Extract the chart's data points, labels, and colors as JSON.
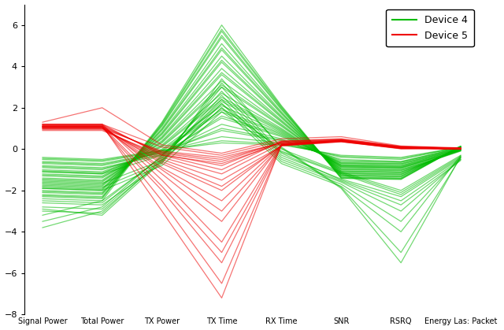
{
  "axes_labels": [
    "Signal Power",
    "Total Power",
    "TX Power",
    "TX Time",
    "RX Time",
    "SNR",
    "RSRQ",
    "Energy Las: Packet"
  ],
  "ylim": [
    -8,
    7
  ],
  "yticks": [
    -8,
    -6,
    -4,
    -2,
    0,
    2,
    4,
    6
  ],
  "device4_color": "#00bb00",
  "device5_color": "#ee0000",
  "alpha": 0.55,
  "linewidth": 0.9,
  "legend_device4": "Device 4",
  "legend_device5": "Device 5",
  "background_color": "#ffffff",
  "device4_data": [
    [
      -0.4,
      -0.5,
      -0.05,
      0.3,
      0.2,
      -0.3,
      -0.4,
      0.1
    ],
    [
      -0.5,
      -0.6,
      -0.1,
      0.6,
      0.3,
      -0.4,
      -0.5,
      0.1
    ],
    [
      -0.6,
      -0.7,
      -0.15,
      0.9,
      0.4,
      -0.5,
      -0.6,
      0.08
    ],
    [
      -0.7,
      -0.8,
      -0.2,
      1.2,
      0.5,
      -0.6,
      -0.65,
      0.06
    ],
    [
      -0.8,
      -0.9,
      -0.25,
      1.5,
      0.6,
      -0.65,
      -0.7,
      0.04
    ],
    [
      -0.9,
      -1.0,
      -0.1,
      1.8,
      0.7,
      -0.7,
      -0.75,
      0.02
    ],
    [
      -1.0,
      -1.1,
      0.0,
      2.1,
      0.8,
      -0.75,
      -0.8,
      0.0
    ],
    [
      -1.1,
      -1.2,
      0.1,
      2.4,
      0.9,
      -0.8,
      -0.85,
      -0.02
    ],
    [
      -1.2,
      -1.3,
      0.2,
      2.7,
      1.0,
      -0.85,
      -0.9,
      -0.04
    ],
    [
      -1.3,
      -1.4,
      0.3,
      3.0,
      1.1,
      -0.9,
      -0.95,
      -0.06
    ],
    [
      -1.4,
      -1.5,
      0.4,
      3.3,
      1.2,
      -0.95,
      -1.0,
      -0.08
    ],
    [
      -1.5,
      -1.6,
      0.5,
      3.6,
      1.3,
      -1.0,
      -1.05,
      -0.1
    ],
    [
      -1.6,
      -1.7,
      0.6,
      3.9,
      1.4,
      -1.05,
      -1.1,
      -0.05
    ],
    [
      -1.7,
      -1.8,
      0.7,
      4.2,
      1.5,
      -1.1,
      -1.15,
      0.0
    ],
    [
      -1.8,
      -1.9,
      0.8,
      4.5,
      1.6,
      -1.15,
      -1.2,
      0.05
    ],
    [
      -1.9,
      -2.0,
      0.9,
      4.8,
      1.7,
      -1.2,
      -1.25,
      0.1
    ],
    [
      -2.0,
      -2.1,
      1.0,
      5.1,
      1.8,
      -1.25,
      -1.3,
      0.1
    ],
    [
      -2.1,
      -2.2,
      1.1,
      5.4,
      1.9,
      -1.3,
      -1.35,
      0.12
    ],
    [
      -2.2,
      -2.3,
      1.2,
      5.7,
      2.0,
      -1.35,
      -1.4,
      0.12
    ],
    [
      -2.3,
      -2.4,
      1.3,
      6.0,
      2.1,
      -1.4,
      -1.45,
      0.15
    ],
    [
      -0.45,
      -0.55,
      -0.08,
      0.4,
      0.25,
      -0.35,
      -0.45,
      0.09
    ],
    [
      -0.65,
      -0.75,
      -0.18,
      1.0,
      0.45,
      -0.55,
      -0.62,
      0.07
    ],
    [
      -0.85,
      -0.95,
      -0.28,
      1.6,
      0.65,
      -0.68,
      -0.72,
      0.03
    ],
    [
      -1.05,
      -1.15,
      -0.05,
      1.9,
      0.75,
      -0.77,
      -0.82,
      0.01
    ],
    [
      -1.25,
      -1.35,
      0.15,
      2.5,
      0.95,
      -0.87,
      -0.92,
      -0.03
    ],
    [
      -1.45,
      -1.55,
      0.35,
      3.1,
      1.15,
      -0.97,
      -1.02,
      -0.07
    ],
    [
      -1.65,
      -1.75,
      0.55,
      3.7,
      1.35,
      -1.07,
      -1.12,
      -0.03
    ],
    [
      -1.85,
      -1.95,
      0.75,
      4.3,
      1.55,
      -1.17,
      -1.22,
      0.03
    ],
    [
      -2.05,
      -2.15,
      0.95,
      4.9,
      1.75,
      -1.27,
      -1.32,
      0.08
    ],
    [
      -2.25,
      -2.35,
      1.15,
      5.5,
      1.95,
      -1.37,
      -1.42,
      0.13
    ],
    [
      -1.55,
      -1.65,
      -0.55,
      2.0,
      0.0,
      -1.1,
      -2.0,
      -0.3
    ],
    [
      -1.75,
      -1.85,
      -0.65,
      2.2,
      -0.1,
      -1.15,
      -2.1,
      -0.35
    ],
    [
      -2.5,
      -2.6,
      -0.35,
      2.8,
      -0.3,
      -1.45,
      -2.3,
      -0.45
    ],
    [
      -2.8,
      -2.9,
      -0.45,
      3.0,
      -0.2,
      -1.5,
      -2.5,
      -0.5
    ],
    [
      -3.0,
      -3.1,
      -0.5,
      2.6,
      -0.4,
      -1.55,
      -2.7,
      -0.55
    ],
    [
      -3.2,
      -2.5,
      -0.4,
      2.4,
      -0.5,
      -1.6,
      -3.0,
      -0.5
    ],
    [
      -3.5,
      -2.8,
      -0.3,
      2.2,
      -0.6,
      -1.7,
      -3.5,
      -0.4
    ],
    [
      -3.8,
      -3.0,
      -0.55,
      2.0,
      -0.7,
      -1.8,
      -4.0,
      -0.3
    ],
    [
      -2.9,
      -3.2,
      -0.6,
      3.2,
      0.1,
      -1.85,
      -5.0,
      -0.4
    ],
    [
      -2.6,
      -2.7,
      -0.7,
      3.4,
      0.05,
      -1.9,
      -5.5,
      -0.35
    ],
    [
      -1.9,
      -2.0,
      -0.8,
      1.8,
      -0.15,
      -1.2,
      -2.2,
      -0.4
    ],
    [
      -1.1,
      -1.2,
      -0.3,
      2.3,
      0.85,
      -0.82,
      -0.88,
      -0.05
    ],
    [
      -2.4,
      -2.5,
      1.25,
      5.8,
      2.05,
      -1.42,
      -1.47,
      0.14
    ]
  ],
  "device5_data": [
    [
      1.0,
      1.0,
      -0.1,
      -0.4,
      0.3,
      0.4,
      0.08,
      0.05
    ],
    [
      1.05,
      1.05,
      -0.15,
      -0.5,
      0.32,
      0.42,
      0.09,
      0.05
    ],
    [
      1.1,
      1.1,
      -0.2,
      -0.6,
      0.34,
      0.44,
      0.1,
      0.04
    ],
    [
      1.15,
      1.15,
      -0.25,
      -0.8,
      0.36,
      0.46,
      0.11,
      0.04
    ],
    [
      1.2,
      1.2,
      -0.3,
      -1.0,
      0.38,
      0.48,
      0.12,
      0.03
    ],
    [
      1.0,
      1.0,
      -0.5,
      -1.5,
      0.15,
      0.35,
      0.03,
      0.02
    ],
    [
      1.05,
      1.05,
      -0.7,
      -2.0,
      0.18,
      0.38,
      0.05,
      0.02
    ],
    [
      1.1,
      1.1,
      -0.9,
      -2.5,
      0.2,
      0.4,
      0.06,
      0.01
    ],
    [
      1.15,
      1.15,
      -1.2,
      -3.5,
      0.22,
      0.42,
      0.07,
      0.01
    ],
    [
      1.2,
      1.2,
      -1.5,
      -4.5,
      0.24,
      0.44,
      0.08,
      0.01
    ],
    [
      1.05,
      1.05,
      -2.0,
      -5.5,
      0.18,
      0.38,
      0.05,
      0.0
    ],
    [
      1.1,
      1.1,
      -2.5,
      -6.5,
      0.2,
      0.4,
      0.06,
      0.0
    ],
    [
      1.15,
      1.15,
      -3.0,
      -7.2,
      0.22,
      0.42,
      0.07,
      0.0
    ],
    [
      0.9,
      0.9,
      -0.3,
      -0.7,
      0.28,
      0.38,
      0.02,
      0.03
    ],
    [
      0.95,
      0.95,
      -0.4,
      -1.2,
      0.26,
      0.36,
      0.01,
      0.02
    ],
    [
      1.0,
      1.0,
      -0.6,
      -1.8,
      0.16,
      0.36,
      0.04,
      0.02
    ],
    [
      1.05,
      1.05,
      -1.0,
      -3.0,
      0.19,
      0.39,
      0.06,
      0.01
    ],
    [
      1.1,
      1.1,
      -1.8,
      -5.0,
      0.21,
      0.41,
      0.07,
      0.01
    ],
    [
      1.2,
      1.2,
      0.1,
      -0.3,
      0.4,
      0.5,
      0.13,
      0.04
    ],
    [
      1.3,
      2.0,
      0.2,
      -0.2,
      0.5,
      0.6,
      0.15,
      0.06
    ]
  ]
}
